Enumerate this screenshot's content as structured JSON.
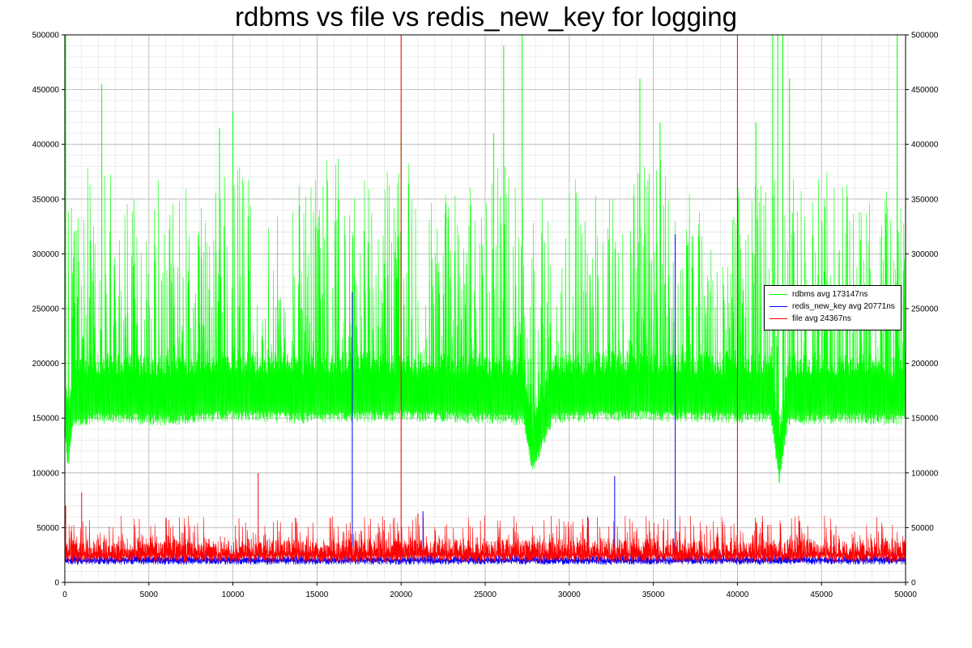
{
  "chart_data": {
    "type": "line",
    "title": "rdbms vs file vs redis_new_key for logging",
    "xlabel": "",
    "ylabel": "",
    "xlim": [
      0,
      50000
    ],
    "ylim": [
      0,
      500000
    ],
    "x_ticks": [
      "0",
      "5000",
      "10000",
      "15000",
      "20000",
      "25000",
      "30000",
      "35000",
      "40000",
      "45000",
      "50000"
    ],
    "y_ticks": [
      "0",
      "50000",
      "100000",
      "150000",
      "200000",
      "250000",
      "300000",
      "350000",
      "400000",
      "450000",
      "500000"
    ],
    "grid": true,
    "legend_position": "right",
    "series": [
      {
        "name": "rdbms avg 173147ns",
        "color": "#00ff00",
        "baseline_x": [
          0,
          200,
          500,
          2000,
          6000,
          10000,
          14000,
          17000,
          20000,
          24000,
          27300,
          27800,
          29000,
          33000,
          37000,
          40000,
          42000,
          42500,
          43000,
          46000,
          50000
        ],
        "baseline_y": [
          160000,
          125000,
          165000,
          170000,
          168000,
          172000,
          170000,
          171000,
          172000,
          170000,
          168000,
          122000,
          170000,
          172000,
          171000,
          170000,
          170000,
          110000,
          168000,
          170000,
          168000
        ],
        "envelope_x": [
          0,
          1000,
          2000,
          3000,
          4000,
          5000,
          6000,
          7000,
          8000,
          9000,
          10000,
          11000,
          12000,
          13000,
          14000,
          15000,
          16000,
          17000,
          18000,
          19000,
          20000,
          21000,
          22000,
          23000,
          24000,
          25000,
          26000,
          27000,
          27500,
          28000,
          29000,
          30000,
          31000,
          32000,
          33000,
          34000,
          35000,
          36000,
          37000,
          38000,
          39000,
          40000,
          41000,
          42000,
          43000,
          44000,
          45000,
          46000,
          47000,
          48000,
          49000,
          50000
        ],
        "envelope_y": [
          330000,
          375000,
          385000,
          380000,
          375000,
          365000,
          370000,
          375000,
          365000,
          365000,
          380000,
          390000,
          375000,
          370000,
          375000,
          385000,
          395000,
          365000,
          370000,
          380000,
          385000,
          385000,
          375000,
          365000,
          365000,
          370000,
          385000,
          385000,
          310000,
          345000,
          365000,
          370000,
          370000,
          355000,
          380000,
          385000,
          395000,
          375000,
          355000,
          360000,
          365000,
          360000,
          370000,
          395000,
          385000,
          365000,
          375000,
          380000,
          385000,
          370000,
          355000,
          370000
        ],
        "spikes_x": [
          50,
          2200,
          9200,
          10000,
          20000,
          25500,
          26100,
          27200,
          34200,
          35400,
          41100,
          42100,
          42400,
          42700,
          43100,
          49500
        ],
        "spikes_y": [
          500000,
          455000,
          415000,
          430000,
          410000,
          410000,
          490000,
          500000,
          460000,
          420000,
          420000,
          500000,
          500000,
          500000,
          460000,
          500000
        ]
      },
      {
        "name": "redis_new_key avg 20771ns",
        "color": "#0000ff",
        "baseline_y": 20000,
        "band_y": [
          16000,
          24000
        ],
        "spikes_x": [
          17100,
          20800,
          21300,
          31100,
          32700,
          36300
        ],
        "spikes_y": [
          265000,
          35000,
          65000,
          60000,
          97000,
          318000
        ]
      },
      {
        "name": "file avg 24367ns",
        "color": "#ff0000",
        "baseline_y": 25000,
        "band_y": [
          18000,
          40000
        ],
        "spikes_x": [
          0,
          50,
          1000,
          11500,
          20000,
          21000,
          40000
        ],
        "spikes_y": [
          125000,
          70000,
          82000,
          100000,
          500000,
          63000,
          500000
        ]
      }
    ]
  }
}
